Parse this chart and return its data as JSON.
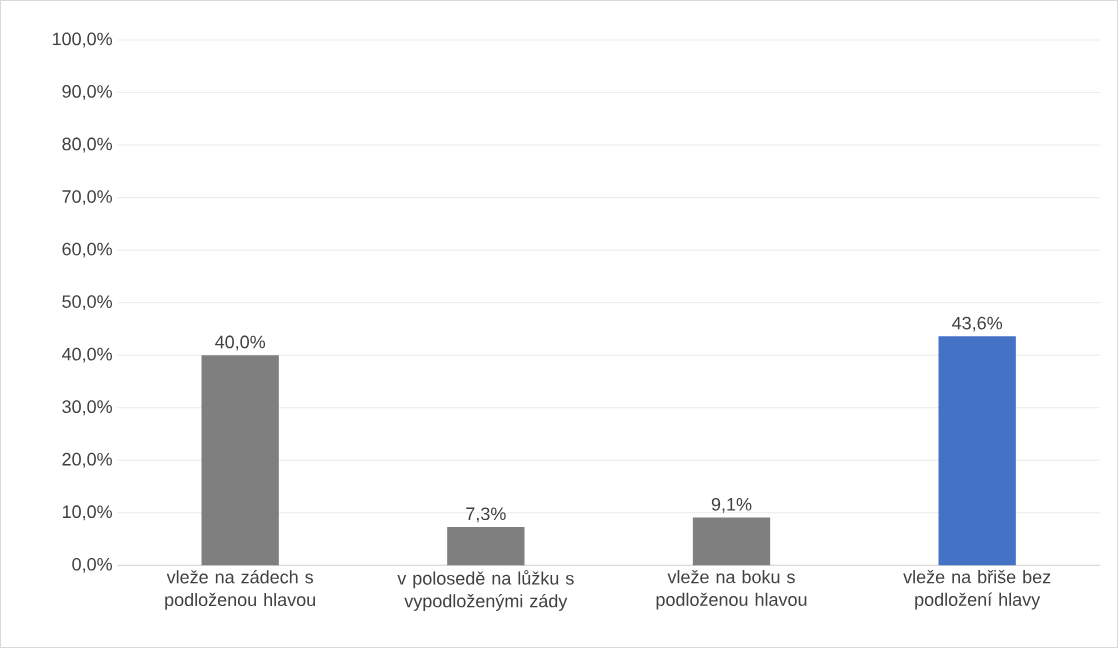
{
  "chart_data": {
    "type": "bar",
    "categories": [
      "vleže na zádech s podloženou hlavou",
      "v polosedě na lůžku s vypodloženými zády",
      "vleže na boku s podloženou hlavou",
      "vleže na břiše bez podložení hlavy"
    ],
    "values": [
      40.0,
      7.3,
      9.1,
      43.6
    ],
    "colors": [
      "#7f7f7f",
      "#7f7f7f",
      "#7f7f7f",
      "#4472c4"
    ],
    "value_labels": [
      "40,0%",
      "7,3%",
      "9,1%",
      "43,6%"
    ],
    "ylim": [
      0,
      100
    ],
    "yticks": [
      {
        "value": 0,
        "label": "0,0%"
      },
      {
        "value": 10,
        "label": "10,0%"
      },
      {
        "value": 20,
        "label": "20,0%"
      },
      {
        "value": 30,
        "label": "30,0%"
      },
      {
        "value": 40,
        "label": "40,0%"
      },
      {
        "value": 50,
        "label": "50,0%"
      },
      {
        "value": 60,
        "label": "60,0%"
      },
      {
        "value": 70,
        "label": "70,0%"
      },
      {
        "value": 80,
        "label": "80,0%"
      },
      {
        "value": 90,
        "label": "90,0%"
      },
      {
        "value": 100,
        "label": "100,0%"
      }
    ],
    "grid": "y"
  }
}
